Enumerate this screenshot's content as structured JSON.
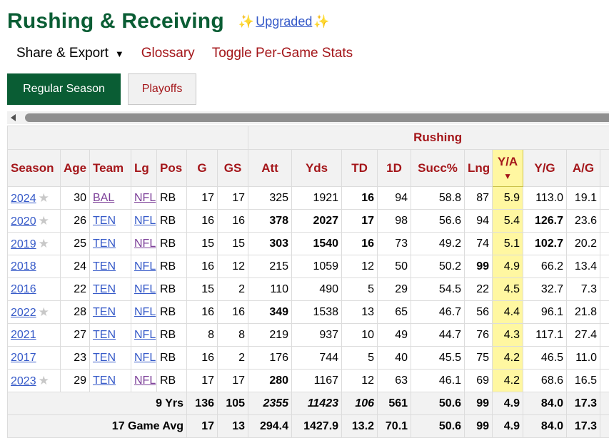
{
  "header": {
    "title": "Rushing & Receiving",
    "upgraded_label": "Upgraded",
    "sparkle": "✨"
  },
  "menu": {
    "share_label": "Share & Export",
    "caret": "▼",
    "glossary_label": "Glossary",
    "toggle_label": "Toggle Per-Game Stats"
  },
  "tabs": [
    {
      "label": "Regular Season",
      "active": true
    },
    {
      "label": "Playoffs",
      "active": false
    }
  ],
  "table": {
    "group_header": "Rushing",
    "columns": [
      "Season",
      "Age",
      "Team",
      "Lg",
      "Pos",
      "G",
      "GS",
      "Att",
      "Yds",
      "TD",
      "1D",
      "Succ%",
      "Lng",
      "Y/A",
      "Y/G",
      "A/G"
    ],
    "sorted_column": "Y/A",
    "sort_arrow": "▼",
    "star": "★",
    "rows": [
      {
        "season": "2024",
        "star": true,
        "age": "30",
        "team": "BAL",
        "team_visited": true,
        "lg": "NFL",
        "lg_visited": true,
        "pos": "RB",
        "g": "17",
        "gs": "17",
        "att": "325",
        "yds": "1921",
        "td": "16",
        "fd": "94",
        "succ": "58.8",
        "lng": "87",
        "ya": "5.9",
        "yg": "113.0",
        "ag": "19.1"
      },
      {
        "season": "2020",
        "star": true,
        "age": "26",
        "team": "TEN",
        "team_visited": false,
        "lg": "NFL",
        "lg_visited": false,
        "pos": "RB",
        "g": "16",
        "gs": "16",
        "att": "378",
        "yds": "2027",
        "td": "17",
        "fd": "98",
        "succ": "56.6",
        "lng": "94",
        "ya": "5.4",
        "yg": "126.7",
        "ag": "23.6"
      },
      {
        "season": "2019",
        "star": true,
        "age": "25",
        "team": "TEN",
        "team_visited": false,
        "lg": "NFL",
        "lg_visited": true,
        "pos": "RB",
        "g": "15",
        "gs": "15",
        "att": "303",
        "yds": "1540",
        "td": "16",
        "fd": "73",
        "succ": "49.2",
        "lng": "74",
        "ya": "5.1",
        "yg": "102.7",
        "ag": "20.2"
      },
      {
        "season": "2018",
        "star": false,
        "age": "24",
        "team": "TEN",
        "team_visited": false,
        "lg": "NFL",
        "lg_visited": false,
        "pos": "RB",
        "g": "16",
        "gs": "12",
        "att": "215",
        "yds": "1059",
        "td": "12",
        "fd": "50",
        "succ": "50.2",
        "lng": "99",
        "ya": "4.9",
        "yg": "66.2",
        "ag": "13.4"
      },
      {
        "season": "2016",
        "star": false,
        "age": "22",
        "team": "TEN",
        "team_visited": false,
        "lg": "NFL",
        "lg_visited": false,
        "pos": "RB",
        "g": "15",
        "gs": "2",
        "att": "110",
        "yds": "490",
        "td": "5",
        "fd": "29",
        "succ": "54.5",
        "lng": "22",
        "ya": "4.5",
        "yg": "32.7",
        "ag": "7.3"
      },
      {
        "season": "2022",
        "star": true,
        "age": "28",
        "team": "TEN",
        "team_visited": false,
        "lg": "NFL",
        "lg_visited": false,
        "pos": "RB",
        "g": "16",
        "gs": "16",
        "att": "349",
        "yds": "1538",
        "td": "13",
        "fd": "65",
        "succ": "46.7",
        "lng": "56",
        "ya": "4.4",
        "yg": "96.1",
        "ag": "21.8"
      },
      {
        "season": "2021",
        "star": false,
        "age": "27",
        "team": "TEN",
        "team_visited": false,
        "lg": "NFL",
        "lg_visited": false,
        "pos": "RB",
        "g": "8",
        "gs": "8",
        "att": "219",
        "yds": "937",
        "td": "10",
        "fd": "49",
        "succ": "44.7",
        "lng": "76",
        "ya": "4.3",
        "yg": "117.1",
        "ag": "27.4"
      },
      {
        "season": "2017",
        "star": false,
        "age": "23",
        "team": "TEN",
        "team_visited": false,
        "lg": "NFL",
        "lg_visited": false,
        "pos": "RB",
        "g": "16",
        "gs": "2",
        "att": "176",
        "yds": "744",
        "td": "5",
        "fd": "40",
        "succ": "45.5",
        "lng": "75",
        "ya": "4.2",
        "yg": "46.5",
        "ag": "11.0"
      },
      {
        "season": "2023",
        "star": true,
        "age": "29",
        "team": "TEN",
        "team_visited": false,
        "lg": "NFL",
        "lg_visited": true,
        "pos": "RB",
        "g": "17",
        "gs": "17",
        "att": "280",
        "yds": "1167",
        "td": "12",
        "fd": "63",
        "succ": "46.1",
        "lng": "69",
        "ya": "4.2",
        "yg": "68.6",
        "ag": "16.5"
      }
    ],
    "footer": [
      {
        "label": "9 Yrs",
        "g": "136",
        "gs": "105",
        "att": "2355",
        "yds": "11423",
        "td": "106",
        "fd": "561",
        "succ": "50.6",
        "lng": "99",
        "ya": "4.9",
        "yg": "84.0",
        "ag": "17.3"
      },
      {
        "label": "17 Game Avg",
        "g": "17",
        "gs": "13",
        "att": "294.4",
        "yds": "1427.9",
        "td": "13.2",
        "fd": "70.1",
        "succ": "50.6",
        "lng": "99",
        "ya": "4.9",
        "yg": "84.0",
        "ag": "17.3"
      }
    ]
  },
  "colors": {
    "title_green": "#0a5d34",
    "link_red": "#a4161a",
    "link_blue": "#3559c8",
    "visited_purple": "#7c3f98",
    "sorted_yellow": "#fff7a1"
  }
}
